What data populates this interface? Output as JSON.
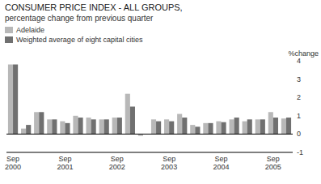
{
  "chart_data": {
    "type": "bar",
    "title": "CONSUMER PRICE INDEX - ALL GROUPS,",
    "subtitle": "percentage change from previous quarter",
    "ylabel": "%change",
    "categories": [
      "Sep\n2000",
      null,
      null,
      null,
      "Sep\n2001",
      null,
      null,
      null,
      "Sep\n2002",
      null,
      null,
      null,
      "Sep\n2003",
      null,
      null,
      null,
      "Sep\n2004",
      null,
      null,
      null,
      "Sep\n2005",
      null
    ],
    "series": [
      {
        "name": "Adelaide",
        "color": "#b8b8b8",
        "values": [
          3.8,
          0.3,
          1.2,
          0.8,
          0.7,
          1.0,
          0.9,
          0.8,
          0.9,
          2.2,
          -0.1,
          0.8,
          0.8,
          1.1,
          0.5,
          0.6,
          0.7,
          0.8,
          0.7,
          0.8,
          1.2,
          0.85
        ]
      },
      {
        "name": "Weighted average of eight capital cities",
        "color": "#707070",
        "values": [
          3.8,
          0.5,
          1.2,
          0.8,
          0.6,
          0.9,
          0.8,
          0.8,
          0.9,
          1.5,
          0.0,
          0.7,
          0.7,
          0.9,
          0.4,
          0.6,
          0.65,
          0.9,
          0.8,
          0.8,
          0.9,
          0.9
        ]
      }
    ],
    "ylim": [
      -1,
      4
    ],
    "yticks": [
      -1,
      0,
      1,
      2,
      3,
      4
    ],
    "grid": false,
    "legend": "top"
  }
}
